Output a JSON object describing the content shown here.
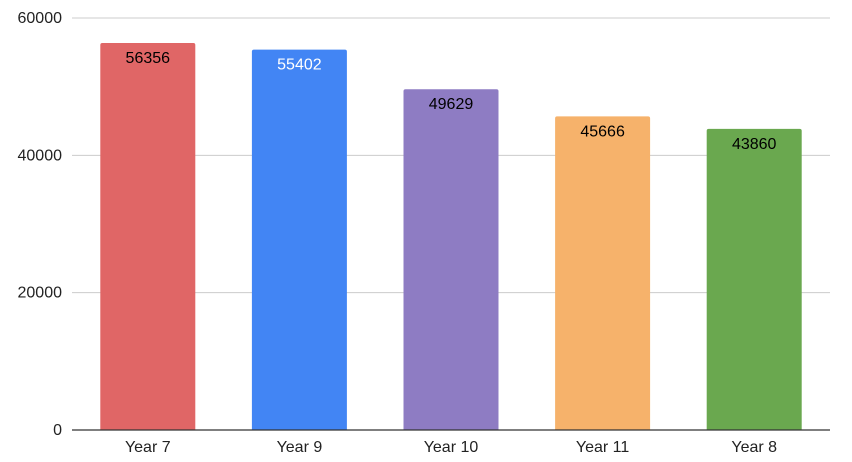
{
  "chart_data": {
    "type": "bar",
    "title": "",
    "xlabel": "",
    "ylabel": "",
    "categories": [
      "Year 7",
      "Year 9",
      "Year 10",
      "Year 11",
      "Year 8"
    ],
    "values": [
      56356,
      55402,
      49629,
      45666,
      43860
    ],
    "bar_colors": [
      "#e06666",
      "#4285f4",
      "#8e7cc3",
      "#f6b26b",
      "#6aa84f"
    ],
    "data_label_colors": [
      "#000000",
      "#ffffff",
      "#000000",
      "#000000",
      "#000000"
    ],
    "ylim": [
      0,
      60000
    ],
    "yticks": [
      0,
      20000,
      40000,
      60000
    ],
    "ytick_labels": [
      "0",
      "20000",
      "40000",
      "60000"
    ],
    "grid": true,
    "legend": "none",
    "data_labels": "inside-top"
  }
}
